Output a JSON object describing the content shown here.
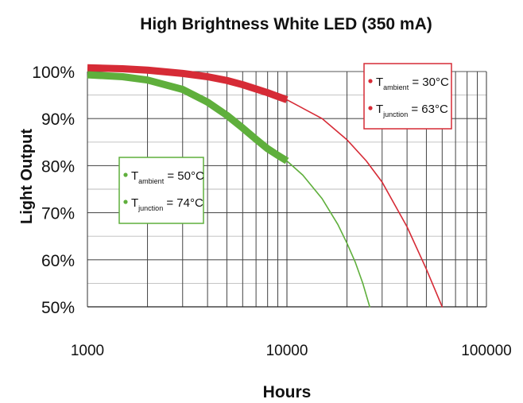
{
  "chart_data": {
    "type": "line",
    "title": "High Brightness White LED (350 mA)",
    "xlabel": "Hours",
    "ylabel": "Light Output",
    "x_scale": "log",
    "xlim": [
      1000,
      100000
    ],
    "ylim": [
      50,
      100
    ],
    "x_ticks": [
      {
        "value": 1000,
        "label": "1000"
      },
      {
        "value": 10000,
        "label": "10000"
      },
      {
        "value": 100000,
        "label": "100000"
      }
    ],
    "y_ticks": [
      {
        "value": 50,
        "label": "50%"
      },
      {
        "value": 60,
        "label": "60%"
      },
      {
        "value": 70,
        "label": "70%"
      },
      {
        "value": 80,
        "label": "80%"
      },
      {
        "value": 90,
        "label": "90%"
      },
      {
        "value": 100,
        "label": "100%"
      }
    ],
    "grid": true,
    "series": [
      {
        "key": "red",
        "color": "#d62b36",
        "legend_position": "top-right",
        "legend": [
          {
            "main": "T",
            "sub": "ambient",
            "rest": " = 30°C"
          },
          {
            "main": "T",
            "sub": "junction",
            "rest": " = 63°C"
          }
        ],
        "measured": [
          {
            "x": 1000,
            "y": 100.8
          },
          {
            "x": 1500,
            "y": 100.6
          },
          {
            "x": 2000,
            "y": 100.3
          },
          {
            "x": 3000,
            "y": 99.6
          },
          {
            "x": 4000,
            "y": 98.9
          },
          {
            "x": 5000,
            "y": 98.1
          },
          {
            "x": 6000,
            "y": 97.2
          },
          {
            "x": 7000,
            "y": 96.3
          },
          {
            "x": 8000,
            "y": 95.5
          },
          {
            "x": 9000,
            "y": 94.7
          },
          {
            "x": 10000,
            "y": 94.0
          }
        ],
        "projected": [
          {
            "x": 10000,
            "y": 94.0
          },
          {
            "x": 15000,
            "y": 90.0
          },
          {
            "x": 20000,
            "y": 85.5
          },
          {
            "x": 25000,
            "y": 81.0
          },
          {
            "x": 30000,
            "y": 76.5
          },
          {
            "x": 40000,
            "y": 67.0
          },
          {
            "x": 50000,
            "y": 58.0
          },
          {
            "x": 60000,
            "y": 50.0
          }
        ]
      },
      {
        "key": "green",
        "color": "#5faf3c",
        "legend_position": "middle-left",
        "legend": [
          {
            "main": "T",
            "sub": "ambient",
            "rest": " = 50°C"
          },
          {
            "main": "T",
            "sub": "junction",
            "rest": " = 74°C"
          }
        ],
        "measured": [
          {
            "x": 1000,
            "y": 99.3
          },
          {
            "x": 1500,
            "y": 98.9
          },
          {
            "x": 2000,
            "y": 98.2
          },
          {
            "x": 3000,
            "y": 96.2
          },
          {
            "x": 4000,
            "y": 93.5
          },
          {
            "x": 5000,
            "y": 90.7
          },
          {
            "x": 6000,
            "y": 88.0
          },
          {
            "x": 7000,
            "y": 85.6
          },
          {
            "x": 8000,
            "y": 83.6
          },
          {
            "x": 9000,
            "y": 82.2
          },
          {
            "x": 10000,
            "y": 81.0
          }
        ],
        "projected": [
          {
            "x": 10000,
            "y": 81.0
          },
          {
            "x": 12000,
            "y": 78.0
          },
          {
            "x": 15000,
            "y": 73.0
          },
          {
            "x": 18000,
            "y": 67.5
          },
          {
            "x": 20000,
            "y": 63.5
          },
          {
            "x": 22000,
            "y": 59.5
          },
          {
            "x": 24000,
            "y": 55.0
          },
          {
            "x": 26000,
            "y": 50.0
          }
        ]
      }
    ]
  }
}
